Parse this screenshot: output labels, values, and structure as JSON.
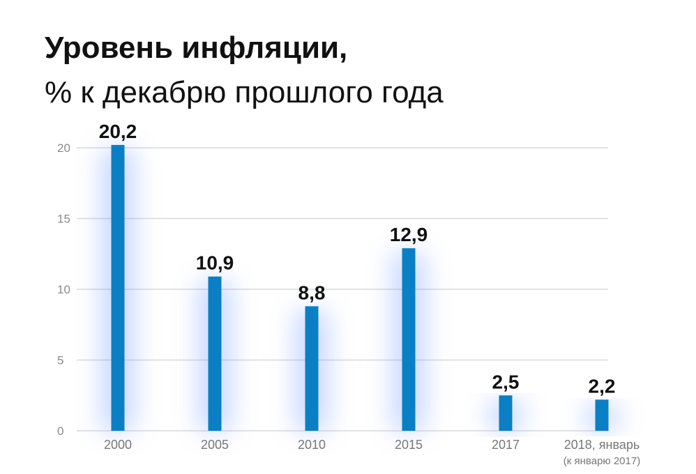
{
  "chart_data": {
    "type": "bar",
    "title": "Уровень инфляции,",
    "subtitle": "% к декабрю прошлого года",
    "categories": [
      "2000",
      "2005",
      "2010",
      "2015",
      "2017",
      "2018, январь"
    ],
    "category_notes": [
      "",
      "",
      "",
      "",
      "",
      "(к январю 2017)"
    ],
    "values": [
      20.2,
      10.9,
      8.8,
      12.9,
      2.5,
      2.2
    ],
    "value_labels": [
      "20,2",
      "10,9",
      "8,8",
      "12,9",
      "2,5",
      "2,2"
    ],
    "yticks": [
      "0",
      "5",
      "10",
      "15",
      "20"
    ],
    "ylim": [
      0,
      20
    ],
    "grid": true,
    "colors": {
      "bar": "#0b7fc4",
      "glow": "#5f8dff",
      "grid": "#d9d9d9"
    }
  }
}
